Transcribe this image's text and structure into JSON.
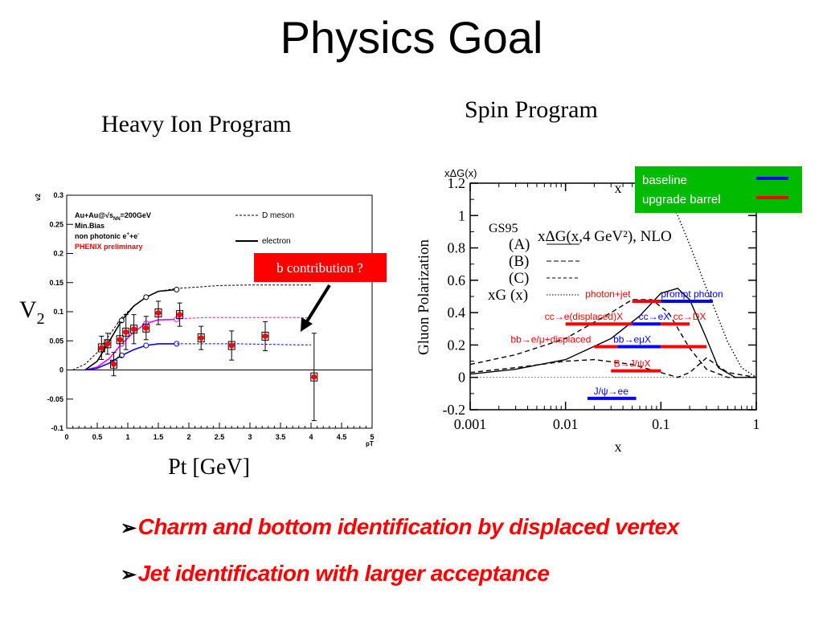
{
  "title": "Physics Goal",
  "heavy_ion": {
    "heading": "Heavy Ion Program",
    "ylabel_main": "V",
    "ylabel_sub": "2",
    "xlabel": "Pt [GeV]",
    "callout": "b contribution ?"
  },
  "spin": {
    "heading": "Spin Program"
  },
  "bullets": [
    "Charm and bottom identification by displaced vertex",
    "Jet identification with larger acceptance"
  ],
  "chart_data": [
    {
      "type": "scatter",
      "ylabel_small": "v2",
      "xlabel_small": "pT",
      "xlim": [
        0,
        5
      ],
      "ylim": [
        -0.1,
        0.3
      ],
      "xticks": [
        0,
        0.5,
        1,
        1.5,
        2,
        2.5,
        3,
        3.5,
        4,
        4.5,
        5
      ],
      "xtick_labels": [
        "0",
        "0.5",
        "1",
        "1.5",
        "2",
        "2.5",
        "3",
        "3.5",
        "4",
        "4.5",
        "5"
      ],
      "yticks": [
        -0.1,
        -0.05,
        0,
        0.05,
        0.1,
        0.15,
        0.2,
        0.25,
        0.3
      ],
      "ytick_labels": [
        "-0.1",
        "-0.05",
        "0",
        "0.05",
        "0.1",
        "0.15",
        "0.2",
        "0.25",
        "0.3"
      ],
      "annotations": [
        "Au+Au@",
        "=200GeV",
        "Min.Bias",
        "non photonic e",
        "+e",
        "PHENIX preliminary"
      ],
      "sqrt_label": "s",
      "sqrt_sub": "NN",
      "charge_plus": "+",
      "charge_minus": "-",
      "legend": [
        {
          "name": "D meson",
          "style": "dashed",
          "color": "#000000"
        },
        {
          "name": "electron",
          "style": "solid",
          "color": "#000000"
        }
      ],
      "series": [
        {
          "name": "D meson",
          "kind": "curve",
          "style": "dashed",
          "color": "#000000",
          "x": [
            0.1,
            0.3,
            0.5,
            0.7,
            0.9,
            1.1,
            1.3,
            1.5,
            1.8,
            2.1,
            2.5,
            3.0,
            3.5,
            4.0
          ],
          "y": [
            0.0,
            0.01,
            0.03,
            0.06,
            0.09,
            0.11,
            0.125,
            0.135,
            0.14,
            0.142,
            0.145,
            0.146,
            0.146,
            0.146
          ]
        },
        {
          "name": "electron",
          "kind": "curve",
          "style": "solid",
          "color": "#000000",
          "x": [
            0.3,
            0.5,
            0.7,
            0.9,
            1.1,
            1.3,
            1.5,
            1.8
          ],
          "y": [
            0.0,
            0.015,
            0.05,
            0.085,
            0.11,
            0.125,
            0.135,
            0.138
          ]
        },
        {
          "name": "",
          "kind": "curve",
          "style": "solid",
          "color": "#ff00ff",
          "x": [
            0.3,
            0.5,
            0.7,
            0.9,
            1.1,
            1.3,
            1.5,
            1.8
          ],
          "y": [
            0.0,
            0.005,
            0.02,
            0.045,
            0.065,
            0.08,
            0.086,
            0.087
          ]
        },
        {
          "name": "",
          "kind": "curve",
          "style": "dashed",
          "color": "#ff00ff",
          "x": [
            1.8,
            2.3,
            2.8,
            3.3,
            3.8,
            4.0
          ],
          "y": [
            0.088,
            0.09,
            0.09,
            0.09,
            0.09,
            0.089
          ]
        },
        {
          "name": "",
          "kind": "curve",
          "style": "solid",
          "color": "#0000ff",
          "x": [
            0.3,
            0.5,
            0.7,
            0.9,
            1.1,
            1.3,
            1.5,
            1.8
          ],
          "y": [
            0.0,
            0.003,
            0.012,
            0.025,
            0.035,
            0.042,
            0.045,
            0.045
          ]
        },
        {
          "name": "",
          "kind": "curve",
          "style": "dashed",
          "color": "#0000ff",
          "x": [
            1.8,
            2.3,
            2.8,
            3.3,
            3.8,
            4.0
          ],
          "y": [
            0.045,
            0.045,
            0.045,
            0.044,
            0.043,
            0.043
          ]
        },
        {
          "name": "",
          "kind": "points",
          "color": "#ff0000",
          "x": [
            0.57,
            0.67,
            0.77,
            0.87,
            0.97,
            1.1,
            1.3,
            1.5,
            1.85,
            2.2,
            2.7,
            3.25,
            4.05
          ],
          "y": [
            0.038,
            0.045,
            0.01,
            0.052,
            0.065,
            0.07,
            0.072,
            0.098,
            0.095,
            0.055,
            0.042,
            0.058,
            -0.012
          ],
          "err": [
            0.02,
            0.018,
            0.02,
            0.03,
            0.03,
            0.025,
            0.02,
            0.02,
            0.02,
            0.02,
            0.025,
            0.025,
            0.075
          ]
        }
      ]
    },
    {
      "type": "line",
      "title": "xΔG(x,4 GeV²), NLO",
      "ylabel_top": "xΔG(x)",
      "ylabel": "Gluon Polarization",
      "xlabel": "x",
      "xlabel_top": "x",
      "xscale": "log",
      "xlim": [
        0.001,
        1
      ],
      "ylim": [
        -0.2,
        1.2
      ],
      "xticks": [
        0.001,
        0.01,
        0.1,
        1
      ],
      "xtick_labels": [
        "0.001",
        "0.01",
        "0.1",
        "1"
      ],
      "yticks": [
        -0.2,
        0,
        0.2,
        0.4,
        0.6,
        0.8,
        1,
        1.2
      ],
      "ytick_labels": [
        "-0.2",
        "0",
        "0.2",
        "0.4",
        "0.6",
        "0.8",
        "1",
        "1.2"
      ],
      "model_labels": [
        "GS95",
        "(A)",
        "(B)",
        "(C)",
        "xG (x)"
      ],
      "legend": [
        {
          "name": "baseline",
          "color": "#0000ff"
        },
        {
          "name": "upgrade barrel",
          "color": "#ff0000"
        }
      ],
      "legend_bg": "#00bb00",
      "series": [
        {
          "name": "(A)",
          "style": "solid",
          "color": "#000000",
          "x": [
            0.001,
            0.003,
            0.01,
            0.03,
            0.06,
            0.1,
            0.15,
            0.2,
            0.3,
            0.4,
            0.6,
            1.0
          ],
          "y": [
            0.02,
            0.05,
            0.11,
            0.24,
            0.38,
            0.52,
            0.55,
            0.48,
            0.24,
            0.06,
            0.0,
            0.0
          ]
        },
        {
          "name": "(B)",
          "style": "dashed",
          "color": "#000000",
          "x": [
            0.001,
            0.003,
            0.01,
            0.03,
            0.05,
            0.08,
            0.12,
            0.2,
            0.3,
            0.5,
            1.0
          ],
          "y": [
            0.08,
            0.14,
            0.24,
            0.4,
            0.48,
            0.48,
            0.4,
            0.18,
            0.05,
            0.0,
            0.0
          ]
        },
        {
          "name": "(C)",
          "style": "dashed",
          "color": "#000000",
          "x": [
            0.001,
            0.003,
            0.01,
            0.02,
            0.05,
            0.1,
            0.15,
            0.2,
            0.3,
            0.5,
            1.0
          ],
          "y": [
            0.03,
            0.06,
            0.1,
            0.11,
            0.08,
            0.03,
            0.0,
            0.03,
            0.12,
            0.03,
            0.0
          ]
        },
        {
          "name": "xG (x)",
          "style": "dotted",
          "color": "#000000",
          "x": [
            0.08,
            0.1,
            0.15,
            0.2,
            0.3,
            0.5,
            0.7,
            1.0
          ],
          "y": [
            1.3,
            1.2,
            1.0,
            0.82,
            0.55,
            0.22,
            0.06,
            0.0
          ]
        }
      ],
      "ranges": [
        {
          "label": "photon+jet",
          "label_color": "#ff0000",
          "y": 0.47,
          "bars": [
            {
              "color": "#ff0000",
              "x1": 0.05,
              "x2": 0.1
            },
            {
              "color": "#0000ff",
              "x1": 0.1,
              "x2": 0.35
            }
          ]
        },
        {
          "label": "prompt photon",
          "label_color": "#0000ff",
          "y": 0.47,
          "bars": []
        },
        {
          "label": "cc→e(displaced)X",
          "label_color": "#ff0000",
          "y": 0.33,
          "bars": [
            {
              "color": "#ff0000",
              "x1": 0.01,
              "x2": 0.05
            },
            {
              "color": "#0000ff",
              "x1": 0.05,
              "x2": 0.1
            }
          ]
        },
        {
          "label": "cc→eX",
          "label_color": "#0000ff",
          "y": 0.33,
          "bars": []
        },
        {
          "label": "cc→DX",
          "label_color": "#ff0000",
          "y": 0.33,
          "bars": [
            {
              "color": "#ff0000",
              "x1": 0.1,
              "x2": 0.2
            }
          ]
        },
        {
          "label": "bb→e/μ+displaced",
          "label_color": "#ff0000",
          "y": 0.19,
          "bars": [
            {
              "color": "#ff0000",
              "x1": 0.02,
              "x2": 0.035
            },
            {
              "color": "#0000ff",
              "x1": 0.035,
              "x2": 0.1
            },
            {
              "color": "#ff0000",
              "x1": 0.1,
              "x2": 0.3
            }
          ]
        },
        {
          "label": "bb→eμX",
          "label_color": "#0000ff",
          "y": 0.19,
          "bars": []
        },
        {
          "label": "B→J/ψX",
          "label_color": "#ff0000",
          "y": 0.04,
          "bars": [
            {
              "color": "#ff0000",
              "x1": 0.03,
              "x2": 0.1
            }
          ]
        },
        {
          "label": "J/ψ→ee",
          "label_color": "#0000ff",
          "y": -0.13,
          "bars": [
            {
              "color": "#0000ff",
              "x1": 0.017,
              "x2": 0.055
            }
          ]
        }
      ]
    }
  ]
}
